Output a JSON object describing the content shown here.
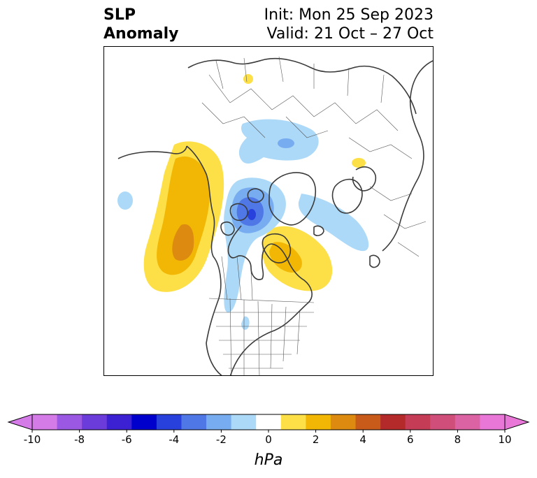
{
  "header": {
    "title_line1": "SLP",
    "title_line2": "Anomaly",
    "init_text": "Init: Mon 25 Sep 2023",
    "valid_text": "Valid: 21 Oct – 27 Oct"
  },
  "map": {
    "projection": "polar-stereographic",
    "region": "Northern Hemisphere",
    "anomalies": [
      {
        "id": "ne-pacific-high",
        "sign": "positive",
        "peak_hpa": 4
      },
      {
        "id": "hudson-bay-high",
        "sign": "positive",
        "peak_hpa": 3
      },
      {
        "id": "arctic-canada-low",
        "sign": "negative",
        "peak_hpa": -6
      },
      {
        "id": "siberia-low",
        "sign": "negative",
        "peak_hpa": -3
      },
      {
        "id": "north-atlantic-low",
        "sign": "negative",
        "peak_hpa": -2
      }
    ]
  },
  "colorbar": {
    "unit": "hPa",
    "tick_labels": [
      "-10",
      "-8",
      "-6",
      "-4",
      "-2",
      "0",
      "2",
      "4",
      "6",
      "8",
      "10"
    ],
    "levels": [
      -10,
      -9,
      -8,
      -7,
      -6,
      -5,
      -4,
      -3,
      -2,
      -1,
      1,
      2,
      3,
      4,
      5,
      6,
      7,
      8,
      9,
      10
    ],
    "colors": [
      "#d47be8",
      "#9b58e2",
      "#6c3cda",
      "#3b21d2",
      "#0000cd",
      "#2841dc",
      "#4f78e6",
      "#78acf0",
      "#acd9f8",
      "#ffffff",
      "#fde047",
      "#f2b705",
      "#dd8a10",
      "#c85a1a",
      "#b42a2a",
      "#c43c56",
      "#d04f7a",
      "#dc63a3",
      "#e877d8"
    ],
    "extend_low_color": "#d47be8",
    "extend_high_color": "#e877d8"
  }
}
